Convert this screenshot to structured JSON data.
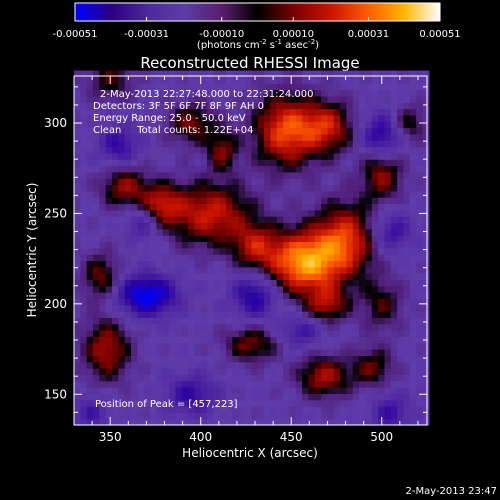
{
  "chart_data": {
    "type": "heatmap",
    "title": "Reconstructed RHESSI Image",
    "xlabel": "Heliocentric X (arcsec)",
    "ylabel": "Heliocentric Y (arcsec)",
    "xlim": [
      330,
      525
    ],
    "ylim": [
      133,
      326
    ],
    "x_ticks": [
      350,
      400,
      450,
      500
    ],
    "y_ticks": [
      150,
      200,
      250,
      300
    ],
    "colorbar": {
      "orientation": "horizontal",
      "position": "top",
      "range": [
        -0.00051,
        0.00051
      ],
      "tick_values": [
        -0.00051,
        -0.00031,
        -0.0001,
        0.0001,
        0.00031,
        0.00051
      ],
      "tick_labels": [
        "-0.00051",
        "-0.00031",
        "-0.00010",
        "0.00010",
        "0.00031",
        "0.00051"
      ],
      "units": {
        "prefix": "(photons cm",
        "exp1": "-2",
        "mid1": " s",
        "exp2": "-1",
        "mid2": " asec",
        "exp3": "-2",
        "suffix": ")"
      },
      "colors": [
        "#0000ff",
        "#2a0080",
        "#4b2a9a",
        "#5a3da8",
        "#5a1e6e",
        "#000000",
        "#7a0000",
        "#c81400",
        "#ff5a00",
        "#ffb400",
        "#ffffff"
      ]
    },
    "annotations": [
      "2-May-2013 22:27:48.000 to 22:31:24.000",
      "Detectors: 3F 5F 6F 7F 8F 9F AH 0",
      "Energy Range: 25.0 - 50.0 keV",
      "Clean     Total counts: 1.22E+04"
    ],
    "peak_label": "Position of Peak = [457,223]",
    "peak_position": [
      457,
      223
    ],
    "sources": [
      {
        "x": 457,
        "y": 223,
        "amp": 1.0,
        "sx": 14,
        "sy": 12
      },
      {
        "x": 447,
        "y": 296,
        "amp": 0.78,
        "sx": 12,
        "sy": 14
      },
      {
        "x": 470,
        "y": 298,
        "amp": 0.6,
        "sx": 10,
        "sy": 10
      },
      {
        "x": 405,
        "y": 250,
        "amp": 0.65,
        "sx": 16,
        "sy": 12
      },
      {
        "x": 480,
        "y": 236,
        "amp": 0.7,
        "sx": 12,
        "sy": 14
      },
      {
        "x": 430,
        "y": 232,
        "amp": 0.5,
        "sx": 9,
        "sy": 9
      },
      {
        "x": 378,
        "y": 255,
        "amp": 0.55,
        "sx": 8,
        "sy": 8
      },
      {
        "x": 358,
        "y": 265,
        "amp": 0.5,
        "sx": 9,
        "sy": 8
      },
      {
        "x": 345,
        "y": 215,
        "amp": 0.45,
        "sx": 7,
        "sy": 9
      },
      {
        "x": 348,
        "y": 175,
        "amp": 0.55,
        "sx": 9,
        "sy": 12
      },
      {
        "x": 428,
        "y": 178,
        "amp": 0.45,
        "sx": 10,
        "sy": 7
      },
      {
        "x": 468,
        "y": 160,
        "amp": 0.55,
        "sx": 10,
        "sy": 8
      },
      {
        "x": 495,
        "y": 165,
        "amp": 0.4,
        "sx": 8,
        "sy": 8
      },
      {
        "x": 500,
        "y": 272,
        "amp": 0.5,
        "sx": 8,
        "sy": 10
      },
      {
        "x": 395,
        "y": 300,
        "amp": 0.45,
        "sx": 9,
        "sy": 8
      },
      {
        "x": 500,
        "y": 200,
        "amp": 0.35,
        "sx": 8,
        "sy": 10
      },
      {
        "x": 350,
        "y": 325,
        "amp": 0.35,
        "sx": 9,
        "sy": 9
      },
      {
        "x": 412,
        "y": 285,
        "amp": 0.45,
        "sx": 6,
        "sy": 8
      },
      {
        "x": 515,
        "y": 300,
        "amp": 0.35,
        "sx": 7,
        "sy": 7
      },
      {
        "x": 470,
        "y": 200,
        "amp": 0.5,
        "sx": 8,
        "sy": 7
      },
      {
        "x": 370,
        "y": 205,
        "amp": -0.7,
        "sx": 12,
        "sy": 8
      },
      {
        "x": 430,
        "y": 205,
        "amp": -0.5,
        "sx": 9,
        "sy": 9
      },
      {
        "x": 500,
        "y": 293,
        "amp": -0.5,
        "sx": 8,
        "sy": 9
      },
      {
        "x": 505,
        "y": 240,
        "amp": -0.4,
        "sx": 8,
        "sy": 8
      },
      {
        "x": 395,
        "y": 150,
        "amp": -0.4,
        "sx": 10,
        "sy": 8
      },
      {
        "x": 355,
        "y": 288,
        "amp": -0.4,
        "sx": 8,
        "sy": 8
      },
      {
        "x": 368,
        "y": 245,
        "amp": -0.35,
        "sx": 7,
        "sy": 7
      },
      {
        "x": 505,
        "y": 140,
        "amp": -0.35,
        "sx": 8,
        "sy": 8
      },
      {
        "x": 455,
        "y": 185,
        "amp": -0.35,
        "sx": 8,
        "sy": 6
      },
      {
        "x": 340,
        "y": 140,
        "amp": -0.3,
        "sx": 7,
        "sy": 7
      }
    ]
  },
  "footer": {
    "date_stamp": "2-May-2013 23:47"
  }
}
